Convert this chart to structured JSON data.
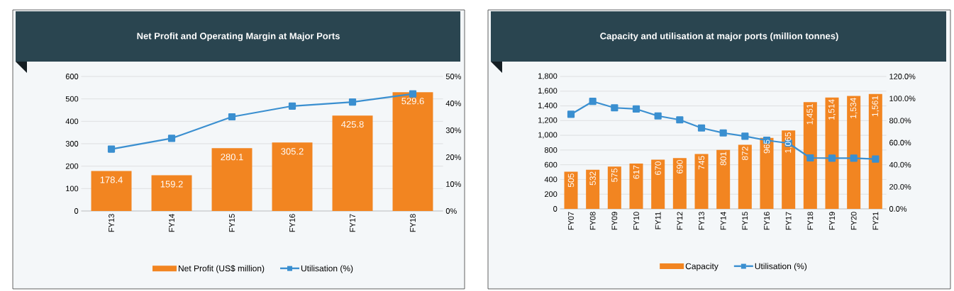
{
  "chart_data": [
    {
      "type": "bar",
      "title": "Net Profit and Operating Margin at Major Ports",
      "categories": [
        "FY13",
        "FY14",
        "FY15",
        "FY16",
        "FY17",
        "FY18"
      ],
      "series": [
        {
          "name": "Net Profit (US$ million)",
          "color": "#f28521",
          "values": [
            178.4,
            159.2,
            280.1,
            305.2,
            425.8,
            529.6
          ],
          "value_labels": [
            "178.4",
            "159.2",
            "280.1",
            "305.2",
            "425.8",
            "529.6"
          ]
        },
        {
          "name": "Utilisation (%)",
          "type": "line",
          "axis": "y2",
          "color": "#3a8fd0",
          "marker": "square",
          "values": [
            23,
            27,
            35,
            39,
            40.5,
            43.5
          ]
        }
      ],
      "ylim": [
        0,
        600
      ],
      "yticks": [
        0,
        100,
        200,
        300,
        400,
        500,
        600
      ],
      "y2lim": [
        0,
        50
      ],
      "y2ticks": [
        {
          "value": 0,
          "label": "0%"
        },
        {
          "value": 10,
          "label": "10%"
        },
        {
          "value": 20,
          "label": "20%"
        },
        {
          "value": 30,
          "label": "30%"
        },
        {
          "value": 40,
          "label": "40%"
        },
        {
          "value": 50,
          "label": "50%"
        }
      ],
      "grid": "y",
      "legend": "bottom"
    },
    {
      "type": "bar",
      "title": "Capacity and utilisation at major ports (million tonnes)",
      "categories": [
        "FY07",
        "FY08",
        "FY09",
        "FY10",
        "FY11",
        "FY12",
        "FY13",
        "FY14",
        "FY15",
        "FY16",
        "FY17",
        "FY18",
        "FY19",
        "FY20",
        "FY21"
      ],
      "series": [
        {
          "name": "Capacity",
          "color": "#f28521",
          "values": [
            505,
            532,
            575,
            617,
            670,
            690,
            745,
            801,
            872,
            965,
            1065,
            1451,
            1514,
            1534,
            1561
          ],
          "value_labels": [
            "505",
            "532",
            "575",
            "617",
            "670",
            "690",
            "745",
            "801",
            "872",
            "965",
            "1,065",
            "1,451",
            "1,514",
            "1,534",
            "1,561"
          ]
        },
        {
          "name": "Utilisation (%)",
          "type": "line",
          "axis": "y2",
          "color": "#3a8fd0",
          "marker": "square",
          "values": [
            85.7,
            97.4,
            91.6,
            90.5,
            84.2,
            80.7,
            73.3,
            68.8,
            65.8,
            62.1,
            59.5,
            46.2,
            45.9,
            45.9,
            45.1
          ]
        }
      ],
      "ylim": [
        0,
        1800
      ],
      "yticks": [
        0,
        200,
        400,
        600,
        800,
        {
          "value": 1000,
          "label": "1,000"
        },
        {
          "value": 1200,
          "label": "1,200"
        },
        {
          "value": 1400,
          "label": "1,400"
        },
        {
          "value": 1600,
          "label": "1,600"
        },
        {
          "value": 1800,
          "label": "1,800"
        }
      ],
      "y2lim": [
        0,
        120
      ],
      "y2ticks": [
        {
          "value": 0,
          "label": "0.0%"
        },
        {
          "value": 20,
          "label": "20.0%"
        },
        {
          "value": 40,
          "label": "40.0%"
        },
        {
          "value": 60,
          "label": "60.0%"
        },
        {
          "value": 80,
          "label": "80.0%"
        },
        {
          "value": 100,
          "label": "100.0%"
        },
        {
          "value": 120,
          "label": "120.0%"
        }
      ],
      "grid": "y",
      "legend": "bottom"
    }
  ]
}
